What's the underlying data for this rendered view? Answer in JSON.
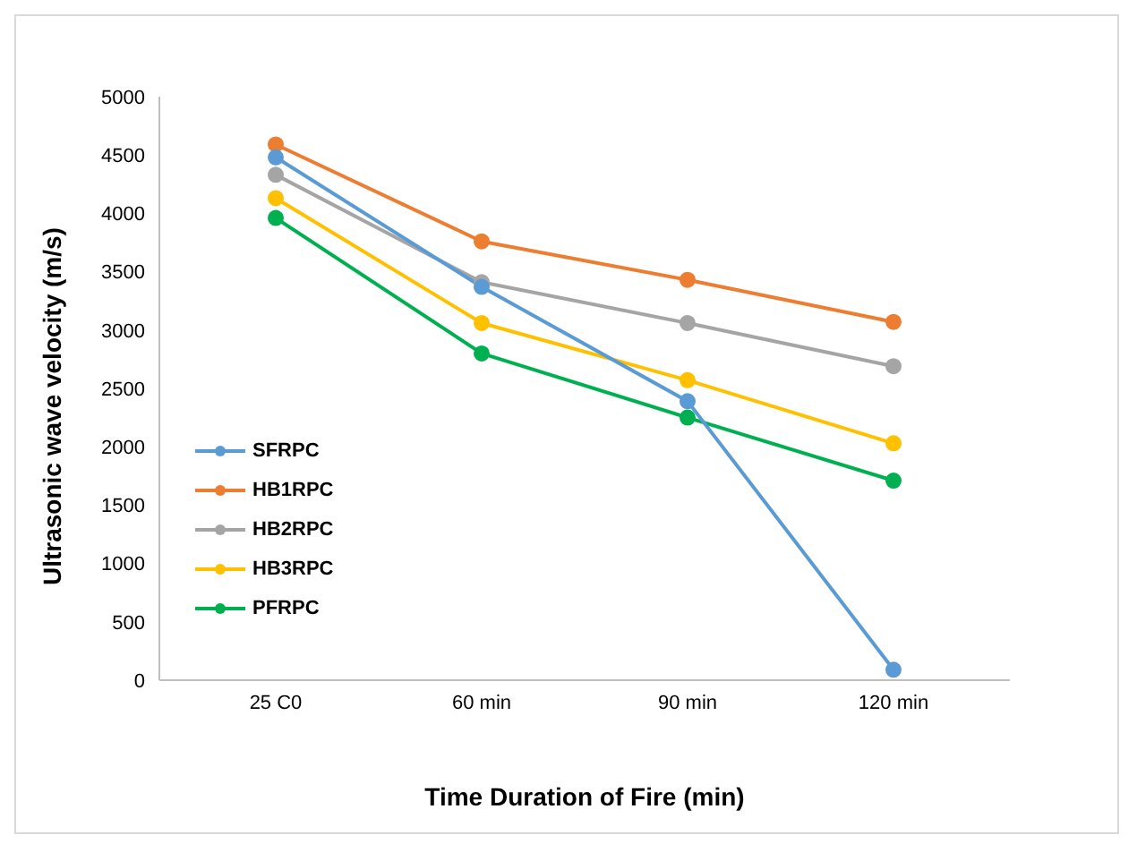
{
  "chart_data": {
    "type": "line",
    "xlabel": "Time Duration of Fire  (min)",
    "ylabel": "Ultrasonic wave velocity (m/s)",
    "categories": [
      "25 C0",
      "60 min",
      "90 min",
      "120 min"
    ],
    "series": [
      {
        "name": "SFRPC",
        "color": "#5b9bd5",
        "values": [
          4480,
          3370,
          2390,
          90
        ]
      },
      {
        "name": "HB1RPC",
        "color": "#ed7d31",
        "values": [
          4590,
          3760,
          3430,
          3070
        ]
      },
      {
        "name": "HB2RPC",
        "color": "#a5a5a5",
        "values": [
          4330,
          3410,
          3060,
          2690
        ]
      },
      {
        "name": "HB3RPC",
        "color": "#ffc000",
        "values": [
          4130,
          3060,
          2570,
          2030
        ]
      },
      {
        "name": "PFRPC",
        "color": "#00b050",
        "values": [
          3960,
          2800,
          2250,
          1710
        ]
      }
    ],
    "ylim": [
      0,
      5000
    ],
    "yticks": [
      0,
      500,
      1000,
      1500,
      2000,
      2500,
      3000,
      3500,
      4000,
      4500,
      5000
    ],
    "grid": false,
    "legend": "left",
    "marker": "circle",
    "line_style": "solid"
  }
}
